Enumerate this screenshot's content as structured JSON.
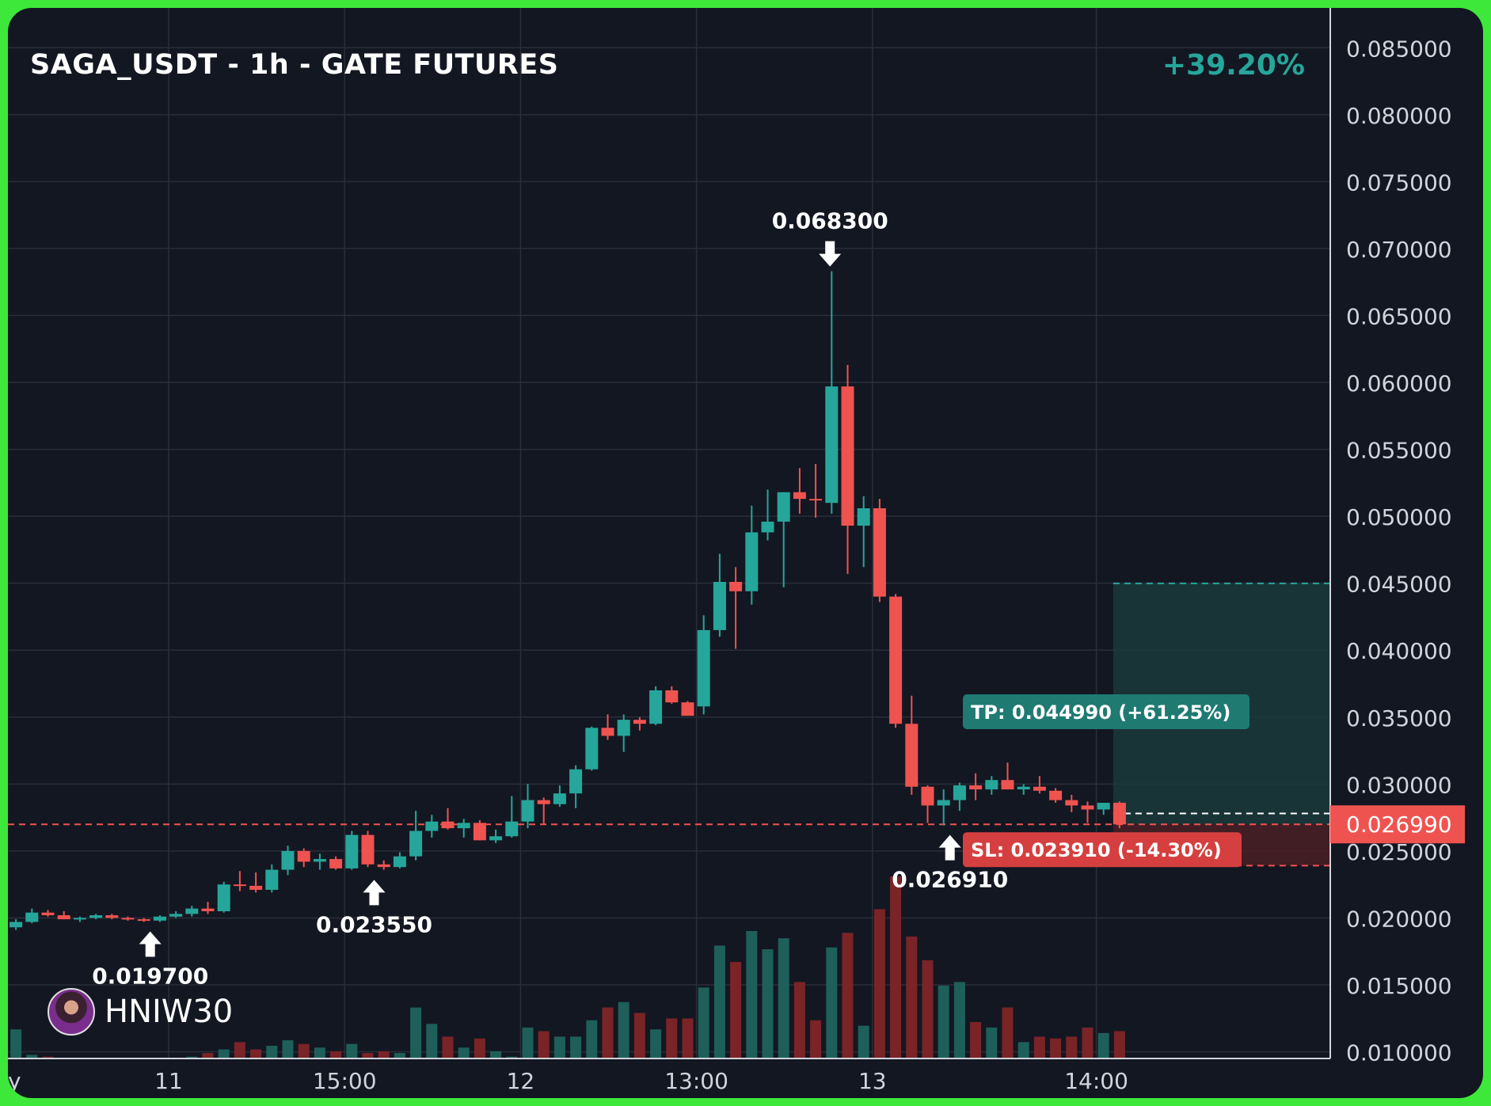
{
  "header": {
    "title": "SAGA_USDT - 1h - GATE FUTURES",
    "change": "+39.20%"
  },
  "author": {
    "name": "HNIW30",
    "icon": "avatar-icon"
  },
  "colors": {
    "up": "#26a69a",
    "down": "#ef5350",
    "background": "#131722",
    "grid": "#2a2e39",
    "frame": "#3ee83a",
    "tp_zone": "#1b3a3b",
    "sl_zone": "#4a1f24"
  },
  "chart_data": {
    "type": "candlestick",
    "interval": "1h",
    "ylim": [
      0.0095,
      0.0875
    ],
    "y_ticks": [
      "0.085000",
      "0.080000",
      "0.075000",
      "0.070000",
      "0.065000",
      "0.060000",
      "0.055000",
      "0.050000",
      "0.045000",
      "0.040000",
      "0.035000",
      "0.030000",
      "0.025000",
      "0.020000",
      "0.015000",
      "0.010000"
    ],
    "x_ticks": [
      {
        "label": "ay",
        "index": -0.9
      },
      {
        "label": "11",
        "index": 10
      },
      {
        "label": "15:00",
        "index": 21
      },
      {
        "label": "12",
        "index": 32
      },
      {
        "label": "13:00",
        "index": 43
      },
      {
        "label": "13",
        "index": 54
      },
      {
        "label": "14:00",
        "index": 68
      }
    ],
    "candles": [
      [
        0.0193,
        0.0199,
        0.0191,
        0.0197
      ],
      [
        0.0197,
        0.0207,
        0.0196,
        0.0204
      ],
      [
        0.0204,
        0.0206,
        0.0201,
        0.0202
      ],
      [
        0.0202,
        0.0205,
        0.0199,
        0.0199
      ],
      [
        0.0199,
        0.0201,
        0.0197,
        0.02
      ],
      [
        0.02,
        0.0203,
        0.0199,
        0.0202
      ],
      [
        0.0202,
        0.0203,
        0.0199,
        0.02
      ],
      [
        0.02,
        0.0201,
        0.0198,
        0.0199
      ],
      [
        0.0199,
        0.02,
        0.0197,
        0.0198
      ],
      [
        0.0198,
        0.0202,
        0.0197,
        0.0201
      ],
      [
        0.0201,
        0.0205,
        0.02,
        0.0203
      ],
      [
        0.0203,
        0.0209,
        0.0201,
        0.0207
      ],
      [
        0.0207,
        0.0212,
        0.0203,
        0.0205
      ],
      [
        0.0205,
        0.0227,
        0.0204,
        0.0225
      ],
      [
        0.0225,
        0.0235,
        0.022,
        0.0224
      ],
      [
        0.0224,
        0.0234,
        0.0219,
        0.0221
      ],
      [
        0.0221,
        0.024,
        0.0219,
        0.0236
      ],
      [
        0.0236,
        0.0254,
        0.0232,
        0.025
      ],
      [
        0.025,
        0.0252,
        0.0238,
        0.0242
      ],
      [
        0.0242,
        0.0248,
        0.0236,
        0.0244
      ],
      [
        0.0244,
        0.0246,
        0.0236,
        0.0237
      ],
      [
        0.0237,
        0.0265,
        0.0236,
        0.0262
      ],
      [
        0.0262,
        0.0265,
        0.0238,
        0.024
      ],
      [
        0.024,
        0.0243,
        0.0236,
        0.0238
      ],
      [
        0.0238,
        0.0249,
        0.0237,
        0.0246
      ],
      [
        0.0246,
        0.028,
        0.0243,
        0.0265
      ],
      [
        0.0265,
        0.0277,
        0.026,
        0.0272
      ],
      [
        0.0272,
        0.0282,
        0.0266,
        0.0267
      ],
      [
        0.0267,
        0.0274,
        0.026,
        0.0271
      ],
      [
        0.0271,
        0.0273,
        0.0258,
        0.0258
      ],
      [
        0.0258,
        0.0266,
        0.0256,
        0.0261
      ],
      [
        0.0261,
        0.0291,
        0.026,
        0.0272
      ],
      [
        0.0272,
        0.03,
        0.0267,
        0.0288
      ],
      [
        0.0288,
        0.029,
        0.027,
        0.0285
      ],
      [
        0.0285,
        0.0299,
        0.0283,
        0.0293
      ],
      [
        0.0293,
        0.0314,
        0.0282,
        0.0311
      ],
      [
        0.0311,
        0.0343,
        0.031,
        0.0342
      ],
      [
        0.0342,
        0.0352,
        0.0333,
        0.0336
      ],
      [
        0.0336,
        0.0352,
        0.0324,
        0.0348
      ],
      [
        0.0348,
        0.035,
        0.034,
        0.0345
      ],
      [
        0.0345,
        0.0373,
        0.0344,
        0.037
      ],
      [
        0.037,
        0.0373,
        0.036,
        0.0361
      ],
      [
        0.0361,
        0.0362,
        0.0352,
        0.0351
      ],
      [
        0.0358,
        0.0426,
        0.0352,
        0.0415
      ],
      [
        0.0415,
        0.0472,
        0.041,
        0.0451
      ],
      [
        0.0451,
        0.0462,
        0.0401,
        0.0444
      ],
      [
        0.0444,
        0.0508,
        0.0434,
        0.0488
      ],
      [
        0.0488,
        0.052,
        0.0482,
        0.0496
      ],
      [
        0.0496,
        0.0518,
        0.0447,
        0.0518
      ],
      [
        0.0518,
        0.0536,
        0.0502,
        0.0513
      ],
      [
        0.0513,
        0.0539,
        0.0499,
        0.0512
      ],
      [
        0.051,
        0.0683,
        0.0502,
        0.0597
      ],
      [
        0.0597,
        0.0613,
        0.0457,
        0.0493
      ],
      [
        0.0493,
        0.0515,
        0.0462,
        0.0506
      ],
      [
        0.0506,
        0.0513,
        0.0436,
        0.044
      ],
      [
        0.044,
        0.0442,
        0.0342,
        0.0345
      ],
      [
        0.0345,
        0.0366,
        0.0292,
        0.0298
      ],
      [
        0.0298,
        0.0299,
        0.0271,
        0.0284
      ],
      [
        0.0284,
        0.0296,
        0.02691,
        0.0288
      ],
      [
        0.0288,
        0.0301,
        0.028,
        0.0299
      ],
      [
        0.0299,
        0.0308,
        0.0288,
        0.0296
      ],
      [
        0.0296,
        0.0306,
        0.0292,
        0.0303
      ],
      [
        0.0303,
        0.0316,
        0.0296,
        0.0296
      ],
      [
        0.0296,
        0.03,
        0.0292,
        0.0298
      ],
      [
        0.0298,
        0.0306,
        0.0293,
        0.0295
      ],
      [
        0.0295,
        0.0297,
        0.0286,
        0.0288
      ],
      [
        0.0288,
        0.0292,
        0.0279,
        0.0284
      ],
      [
        0.0284,
        0.0287,
        0.0271,
        0.0281
      ],
      [
        0.0281,
        0.0286,
        0.0277,
        0.0286
      ],
      [
        0.0286,
        0.0287,
        0.0267,
        0.02699
      ]
    ],
    "volume_ylim": [
      0,
      100
    ],
    "volume": [
      16,
      2,
      1,
      0,
      0,
      0,
      0,
      0,
      0,
      0,
      0,
      1,
      3,
      5,
      9,
      5,
      7,
      10,
      8,
      6,
      4,
      8,
      3,
      4,
      3,
      28,
      19,
      12,
      6,
      11,
      4,
      1,
      17,
      15,
      12,
      12,
      21,
      28,
      31,
      25,
      16,
      22,
      22,
      39,
      62,
      53,
      70,
      60,
      66,
      42,
      21,
      61,
      69,
      18,
      82,
      100,
      67,
      54,
      40,
      42,
      20,
      17,
      28,
      9,
      12,
      11,
      12,
      17,
      14,
      15
    ],
    "annotations": [
      {
        "text": "0.019700",
        "index": 8.5,
        "price": 0.0197,
        "dir": "up"
      },
      {
        "text": "0.023550",
        "index": 22.5,
        "price": 0.02355,
        "dir": "up"
      },
      {
        "text": "0.068300",
        "index": 51,
        "price": 0.0683,
        "dir": "down"
      },
      {
        "text": "0.026910",
        "index": 58.5,
        "price": 0.02691,
        "dir": "up"
      }
    ],
    "current_price": {
      "value": 0.02699,
      "label": "0.026990"
    },
    "take_profit": {
      "value": 0.04499,
      "label": "TP: 0.044990  (+61.25%)"
    },
    "stop_loss": {
      "value": 0.02391,
      "label": "SL: 0.023910  (-14.30%)"
    }
  }
}
